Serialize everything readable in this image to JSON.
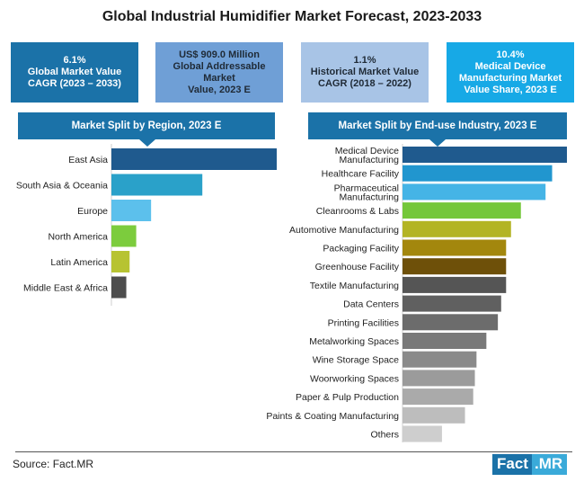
{
  "title": "Global Industrial Humidifier Market Forecast, 2023-2033",
  "stats": [
    {
      "line1": "6.1%",
      "line2": "Global Market Value",
      "line3": "CAGR (2023 – 2033)",
      "color": "#1b72a8"
    },
    {
      "line1": "US$ 909.0 Million",
      "line2": "Global Addressable Market",
      "line3": "Value, 2023 E",
      "color": "#6f9fd6"
    },
    {
      "line1": "1.1%",
      "line2": "Historical Market Value",
      "line3": "CAGR (2018 – 2022)",
      "color": "#a8c4e6"
    },
    {
      "line1": "10.4%",
      "line2": "Medical Device Manufacturing Market",
      "line3": "Value Share, 2023 E",
      "color": "#17a9e6"
    }
  ],
  "sections": {
    "region": "Market Split by Region, 2023 E",
    "industry": "Market Split by End-use Industry, 2023 E"
  },
  "source": "Source: Fact.MR",
  "logo": {
    "part1": "Fact",
    "part2": ".MR"
  },
  "chart_data": [
    {
      "type": "bar",
      "orientation": "horizontal",
      "title": "Market Split by Region, 2023 E",
      "categories": [
        "East Asia",
        "South Asia & Oceania",
        "Europe",
        "North America",
        "Latin America",
        "Middle East & Africa"
      ],
      "values": [
        100,
        55,
        24,
        15,
        11,
        9
      ],
      "colors": [
        "#1f5a8e",
        "#2aa1c9",
        "#5cc0ec",
        "#7ccc3d",
        "#b7c332",
        "#4d4d4d"
      ]
    },
    {
      "type": "bar",
      "orientation": "horizontal",
      "title": "Market Split by End-use Industry, 2023 E",
      "categories": [
        [
          "Medical Device",
          "Manufacturing"
        ],
        [
          "Healthcare Facility"
        ],
        [
          "Pharmaceutical",
          "Manufacturing"
        ],
        [
          "Cleanrooms & Labs"
        ],
        [
          "Automotive Manufacturing"
        ],
        [
          "Packaging Facility"
        ],
        [
          "Greenhouse Facility"
        ],
        [
          "Textile Manufacturing"
        ],
        [
          "Data Centers"
        ],
        [
          "Printing Facilities"
        ],
        [
          "Metalworking Spaces"
        ],
        [
          "Wine Storage Space"
        ],
        [
          "Woorworking Spaces"
        ],
        [
          "Paper & Pulp Production"
        ],
        [
          "Paints & Coating Manufacturing"
        ],
        [
          "Others"
        ]
      ],
      "values": [
        100,
        91,
        87,
        72,
        66,
        63,
        63,
        63,
        60,
        58,
        51,
        45,
        44,
        43,
        38,
        24
      ],
      "colors": [
        "#1f5a8e",
        "#2196cf",
        "#45b4e6",
        "#74c73a",
        "#b3b424",
        "#a3870d",
        "#6e5009",
        "#555555",
        "#606060",
        "#6c6c6c",
        "#797979",
        "#8a8a8a",
        "#9b9b9b",
        "#aaaaaa",
        "#bdbdbd",
        "#cecece"
      ]
    }
  ]
}
